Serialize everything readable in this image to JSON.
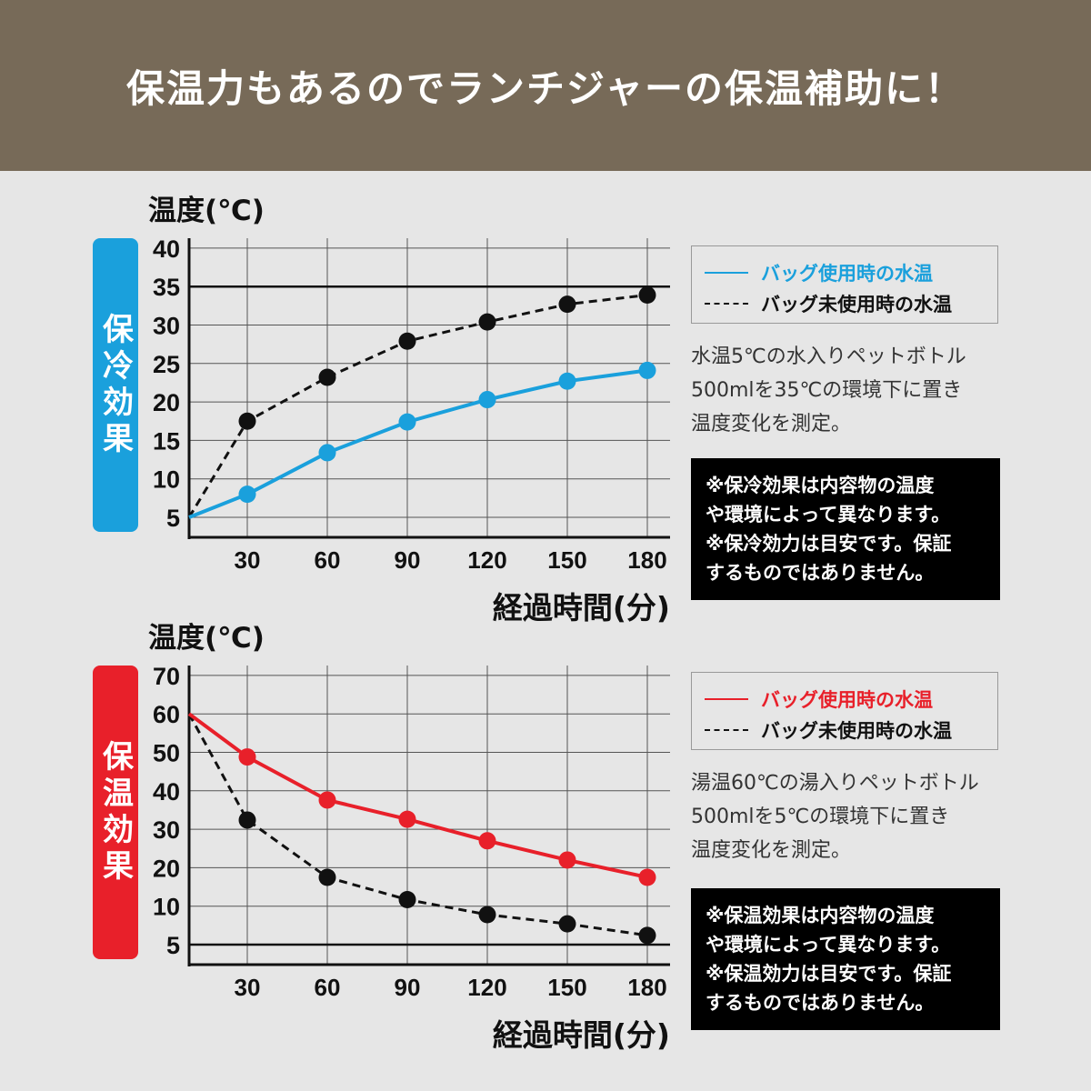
{
  "header": {
    "title": "保温力もあるのでランチジャーの保温補助に！"
  },
  "colors": {
    "header_bg": "#776a58",
    "cold": "#1aa0dc",
    "hot": "#e8202a",
    "black": "#111111"
  },
  "cold": {
    "ylabel": "温度(℃)",
    "badge": "保冷効果",
    "xlabel": "経過時間(分)",
    "legend": {
      "with_bag": "バッグ使用時の水温",
      "without_bag": "バッグ未使用時の水温"
    },
    "description": [
      "水温5℃の水入りペットボトル",
      "500mlを35℃の環境下に置き",
      "温度変化を測定。"
    ],
    "notes": [
      "※保冷効果は内容物の温度",
      "や環境によって異なります。",
      "※保冷効力は目安です。保証",
      "するものではありません。"
    ]
  },
  "hot": {
    "ylabel": "温度(℃)",
    "badge": "保温効果",
    "xlabel": "経過時間(分)",
    "legend": {
      "with_bag": "バッグ使用時の水温",
      "without_bag": "バッグ未使用時の水温"
    },
    "description": [
      "湯温60℃の湯入りペットボトル",
      "500mlを5℃の環境下に置き",
      "温度変化を測定。"
    ],
    "notes": [
      "※保温効果は内容物の温度",
      "や環境によって異なります。",
      "※保温効力は目安です。保証",
      "するものではありません。"
    ]
  },
  "chart_data": [
    {
      "type": "line",
      "ylabel": "温度(℃)",
      "xlabel": "経過時間(分)",
      "x": [
        0,
        30,
        60,
        90,
        120,
        150,
        180
      ],
      "xticks": [
        30,
        60,
        90,
        120,
        150,
        180
      ],
      "yticks": [
        5,
        10,
        15,
        20,
        25,
        30,
        35,
        40
      ],
      "reference_line": 35,
      "grid": true,
      "legend": "right",
      "series": [
        {
          "name": "バッグ使用時の水温",
          "style": "solid",
          "color": "#1aa0dc",
          "values": [
            5,
            8,
            13.4,
            17.4,
            20.3,
            22.7,
            24.1
          ]
        },
        {
          "name": "バッグ未使用時の水温",
          "style": "dashed",
          "color": "#111111",
          "values": [
            5,
            17.5,
            23.2,
            27.9,
            30.4,
            32.7,
            33.9
          ]
        }
      ]
    },
    {
      "type": "line",
      "ylabel": "温度(℃)",
      "xlabel": "経過時間(分)",
      "x": [
        0,
        30,
        60,
        90,
        120,
        150,
        180
      ],
      "xticks": [
        30,
        60,
        90,
        120,
        150,
        180
      ],
      "yticks": [
        5,
        10,
        20,
        30,
        40,
        50,
        60,
        70
      ],
      "reference_line": 5,
      "grid": true,
      "legend": "right",
      "series": [
        {
          "name": "バッグ使用時の水温",
          "style": "solid",
          "color": "#e8202a",
          "values": [
            60,
            48.8,
            37.6,
            32.6,
            27,
            22,
            17.5
          ]
        },
        {
          "name": "バッグ未使用時の水温",
          "style": "dashed",
          "color": "#111111",
          "values": [
            60,
            32.4,
            17.5,
            11.7,
            8.9,
            7.7,
            6.2
          ]
        }
      ]
    }
  ]
}
